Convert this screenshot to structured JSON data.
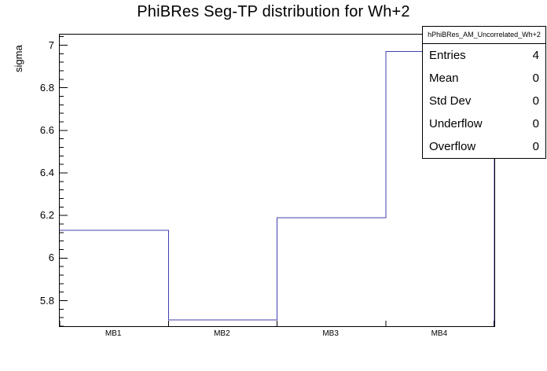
{
  "title": "PhiBRes Seg-TP distribution for Wh+2",
  "stats_box": {
    "header": "hPhiBRes_AM_Uncorrelated_Wh+2",
    "rows": [
      {
        "label": "Entries",
        "value": "4"
      },
      {
        "label": "Mean",
        "value": "0"
      },
      {
        "label": "Std Dev",
        "value": "0"
      },
      {
        "label": "Underflow",
        "value": "0"
      },
      {
        "label": "Overflow",
        "value": "0"
      }
    ]
  },
  "chart_data": {
    "type": "line",
    "style": "step-histogram",
    "title": "PhiBRes Seg-TP distribution for Wh+2",
    "categories": [
      "MB1",
      "MB2",
      "MB3",
      "MB4"
    ],
    "values": [
      6.13,
      5.71,
      6.19,
      6.97
    ],
    "xlabel": "",
    "ylabel": "sigma",
    "ylim": [
      5.68,
      7.05
    ],
    "yticks": [
      5.8,
      6.0,
      6.2,
      6.4,
      6.6,
      6.8,
      7.0
    ],
    "ytick_labels": [
      "5.8",
      "6",
      "6.2",
      "6.4",
      "6.6",
      "6.8",
      "7"
    ],
    "minor_tick_step": 0.04,
    "grid": false,
    "legend": false,
    "line_color": "#4040b0",
    "frame_color": "#000000"
  }
}
